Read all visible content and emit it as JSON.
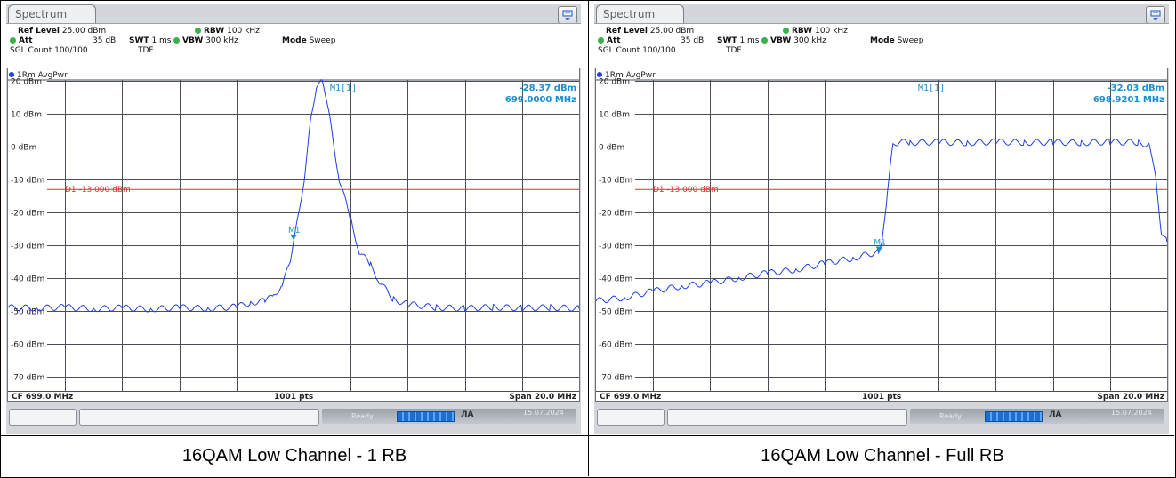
{
  "panels": [
    {
      "tab_title": "Spectrum",
      "ref_level_label": "Ref Level",
      "ref_level_value": "25.00 dBm",
      "att_label": "Att",
      "att_value": "35 dB",
      "swt_label": "SWT",
      "swt_value": "1 ms",
      "rbw_label": "RBW",
      "rbw_value": "100 kHz",
      "vbw_label": "VBW",
      "vbw_value": "300 kHz",
      "mode_label": "Mode",
      "mode_value": "Sweep",
      "sgl_count": "SGL Count 100/100",
      "tdf": "TDF",
      "trace_label": "1Rm AvgPwr",
      "marker_name": "M1[1]",
      "marker_level": "-28.37 dBm",
      "marker_freq": "699.0000 MHz",
      "marker_tag": "M1",
      "display_line": "D1 -13.000 dBm",
      "cf": "CF 699.0 MHz",
      "pts": "1001 pts",
      "span": "Span 20.0 MHz",
      "status_ready": "Ready",
      "status_date": "15.07.2024",
      "status_time": "",
      "caption": "16QAM Low Channel - 1 RB"
    },
    {
      "tab_title": "Spectrum",
      "ref_level_label": "Ref Level",
      "ref_level_value": "25.00 dBm",
      "att_label": "Att",
      "att_value": "35 dB",
      "swt_label": "SWT",
      "swt_value": "1 ms",
      "rbw_label": "RBW",
      "rbw_value": "100 kHz",
      "vbw_label": "VBW",
      "vbw_value": "300 kHz",
      "mode_label": "Mode",
      "mode_value": "Sweep",
      "sgl_count": "SGL Count 100/100",
      "tdf": "TDF",
      "trace_label": "1Rm AvgPwr",
      "marker_name": "M1[1]",
      "marker_level": "-32.03 dBm",
      "marker_freq": "698.9201 MHz",
      "marker_tag": "M1",
      "display_line": "D1 -13.000 dBm",
      "cf": "CF 699.0 MHz",
      "pts": "1001 pts",
      "span": "Span 20.0 MHz",
      "status_ready": "Ready",
      "status_date": "15.07.2024",
      "status_time": "",
      "caption": "16QAM Low Channel - Full RB"
    }
  ],
  "y_tick_labels": [
    "20 dBm",
    "10 dBm",
    "0 dBm",
    "-10 dBm",
    "-20 dBm",
    "-30 dBm",
    "-40 dBm",
    "-50 dBm",
    "-60 dBm",
    "-70 dBm"
  ],
  "colors": {
    "trace": "#1f3fe0",
    "display_line": "#e03030",
    "marker_text": "#1a8fd6",
    "grid": "#4a4f57",
    "tick_text": "#222222"
  },
  "chart_data": [
    {
      "type": "line",
      "x_unit": "MHz",
      "xlim": [
        689.0,
        709.0
      ],
      "y_unit": "dBm",
      "ylim": [
        -75,
        25
      ],
      "grid": true,
      "display_line_dbm": -13.0,
      "marker": {
        "x": 699.0,
        "y": -28.37
      },
      "series": [
        {
          "x": [
            689.0,
            690.0,
            691.0,
            692.0,
            693.0,
            694.0,
            695.0,
            696.0,
            697.0,
            697.5,
            698.0,
            698.3,
            698.6,
            698.9,
            699.0,
            699.2,
            699.4,
            699.6,
            699.8,
            700.0,
            700.1,
            700.3,
            700.6,
            701.0,
            701.3,
            701.7,
            702.0,
            702.5,
            703.0,
            704.0,
            705.0,
            706.0,
            707.0,
            708.0,
            709.0
          ],
          "y": [
            -49.0,
            -49.2,
            -48.9,
            -49.4,
            -49.1,
            -49.5,
            -49.0,
            -49.3,
            -48.8,
            -47.5,
            -47.0,
            -45.5,
            -42.0,
            -35.0,
            -28.4,
            -20.0,
            -8.0,
            8.0,
            18.5,
            19.8,
            17.0,
            7.0,
            -10.0,
            -22.0,
            -32.0,
            -36.0,
            -41.0,
            -46.5,
            -48.0,
            -49.0,
            -49.3,
            -48.9,
            -49.2,
            -49.0,
            -49.3
          ]
        }
      ]
    },
    {
      "type": "line",
      "x_unit": "MHz",
      "xlim": [
        689.0,
        709.0
      ],
      "y_unit": "dBm",
      "ylim": [
        -75,
        25
      ],
      "grid": true,
      "display_line_dbm": -13.0,
      "marker": {
        "x": 698.92,
        "y": -32.03
      },
      "series": [
        {
          "x": [
            689.0,
            690.0,
            691.0,
            692.0,
            693.0,
            694.0,
            695.0,
            696.0,
            697.0,
            698.0,
            698.9,
            699.0,
            699.2,
            699.4,
            699.6,
            700.0,
            701.0,
            702.0,
            703.0,
            704.0,
            705.0,
            706.0,
            707.0,
            708.0,
            708.4,
            708.6,
            708.8,
            709.0
          ],
          "y": [
            -47.0,
            -46.0,
            -44.0,
            -42.5,
            -41.5,
            -40.0,
            -38.5,
            -37.5,
            -35.5,
            -34.0,
            -32.0,
            -30.0,
            -14.0,
            0.5,
            1.5,
            1.3,
            1.4,
            1.2,
            1.5,
            1.3,
            1.4,
            1.2,
            1.5,
            1.3,
            0.5,
            -10.0,
            -26.0,
            -29.0
          ]
        }
      ]
    }
  ]
}
